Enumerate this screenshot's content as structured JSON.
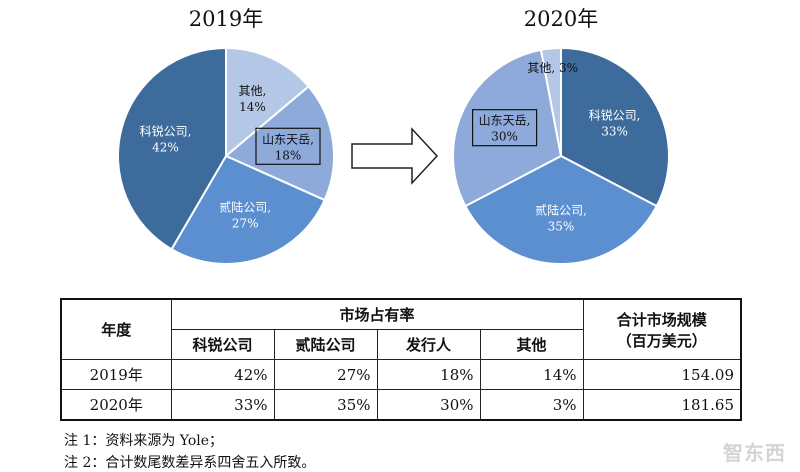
{
  "chart_data": [
    {
      "type": "pie",
      "title": "2019年",
      "slices": [
        {
          "label": "其他, 14%",
          "name": "其他",
          "value": 14,
          "color": "#b4c7e7"
        },
        {
          "label": "山东天岳, 18%",
          "name": "山东天岳",
          "value": 18,
          "color": "#8eaadb",
          "boxed": true
        },
        {
          "label": "贰陆公司, 27%",
          "name": "贰陆公司",
          "value": 27,
          "color": "#5b8fd0"
        },
        {
          "label": "科锐公司, 42%",
          "name": "科锐公司",
          "value": 42,
          "color": "#3d6b9c"
        }
      ]
    },
    {
      "type": "pie",
      "title": "2020年",
      "slices": [
        {
          "label": "科锐公司, 33%",
          "name": "科锐公司",
          "value": 33,
          "color": "#3d6b9c"
        },
        {
          "label": "贰陆公司, 35%",
          "name": "贰陆公司",
          "value": 35,
          "color": "#5b8fd0"
        },
        {
          "label": "山东天岳, 30%",
          "name": "山东天岳",
          "value": 30,
          "color": "#8eaadb",
          "boxed": true
        },
        {
          "label": "其他, 3%",
          "name": "其他",
          "value": 3,
          "color": "#b4c7e7"
        }
      ]
    },
    {
      "type": "table",
      "headers": {
        "year": "年度",
        "share_group": "市场占有率",
        "total": "合计市场规模",
        "total_unit": "（百万美元）",
        "columns": [
          "科锐公司",
          "贰陆公司",
          "发行人",
          "其他"
        ]
      },
      "rows": [
        {
          "year": "2019年",
          "cells": [
            "42%",
            "27%",
            "18%",
            "14%"
          ],
          "total": "154.09"
        },
        {
          "year": "2020年",
          "cells": [
            "33%",
            "35%",
            "30%",
            "3%"
          ],
          "total": "181.65"
        }
      ]
    }
  ],
  "notes": {
    "note1": "注 1：资料来源为 Yole；",
    "note2": "注 2：合计数尾数差异系四舍五入所致。"
  },
  "arrow_color": "#222222",
  "watermark": "智东西"
}
